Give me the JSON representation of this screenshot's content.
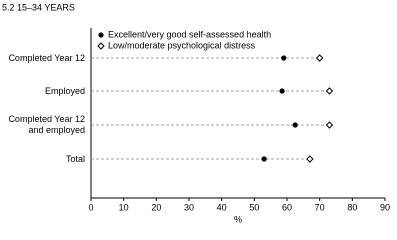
{
  "chart_data": {
    "type": "dot",
    "title": "5.2 15–34 YEARS",
    "categories": [
      "Completed Year 12",
      "Employed",
      "Completed Year 12\nand employed",
      "Total"
    ],
    "series": [
      {
        "name": "Excellent/very good self-assessed health",
        "color": "#000000",
        "marker": "filled-circle",
        "values": [
          59,
          58.5,
          62.5,
          53
        ]
      },
      {
        "name": "Low/moderate psychological distress",
        "color": "#000000",
        "marker": "open-diamond",
        "values": [
          70,
          73,
          73,
          67
        ]
      }
    ],
    "xlabel": "%",
    "xlim": [
      0,
      90
    ],
    "xticks": [
      0,
      10,
      20,
      30,
      40,
      50,
      60,
      70,
      80,
      90
    ],
    "legend": "top-left"
  }
}
